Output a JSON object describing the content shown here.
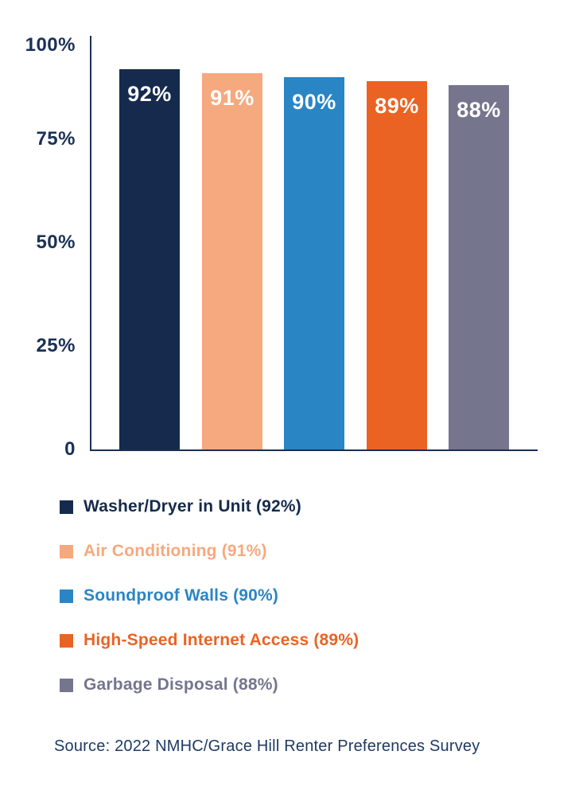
{
  "chart_data": {
    "type": "bar",
    "title": "",
    "xlabel": "",
    "ylabel": "",
    "ylim": [
      0,
      100
    ],
    "grid": false,
    "legend_position": "bottom",
    "categories": [
      "Washer/Dryer in Unit",
      "Air Conditioning",
      "Soundproof Walls",
      "High-Speed Internet Access",
      "Garbage Disposal"
    ],
    "values": [
      92,
      91,
      90,
      89,
      88
    ],
    "bar_labels": [
      "92%",
      "91%",
      "90%",
      "89%",
      "88%"
    ],
    "bar_colors": [
      "#152A4D",
      "#F6A97E",
      "#2A85C5",
      "#EB6323",
      "#76758E"
    ],
    "yticks": [
      {
        "value": 0,
        "label": "0"
      },
      {
        "value": 25,
        "label": "25%"
      },
      {
        "value": 50,
        "label": "50%"
      },
      {
        "value": 75,
        "label": "75%"
      },
      {
        "value": 100,
        "label": "100%"
      }
    ],
    "legend": [
      {
        "label": "Washer/Dryer in Unit (92%)",
        "color": "#152A4D"
      },
      {
        "label": "Air Conditioning (91%)",
        "color": "#F6A97E"
      },
      {
        "label": "Soundproof Walls (90%)",
        "color": "#2A85C5"
      },
      {
        "label": "High-Speed Internet Access (89%)",
        "color": "#EB6323"
      },
      {
        "label": "Garbage Disposal (88%)",
        "color": "#76758E"
      }
    ]
  },
  "source": {
    "text": "Source: 2022 NMHC/Grace Hill Renter Preferences Survey"
  },
  "colors": {
    "axis": "#1B2F54",
    "tick_text": "#1B3055",
    "bar_value_text": "#FFFFFF",
    "source_text": "#1E3A63",
    "background": "#FFFFFF"
  }
}
